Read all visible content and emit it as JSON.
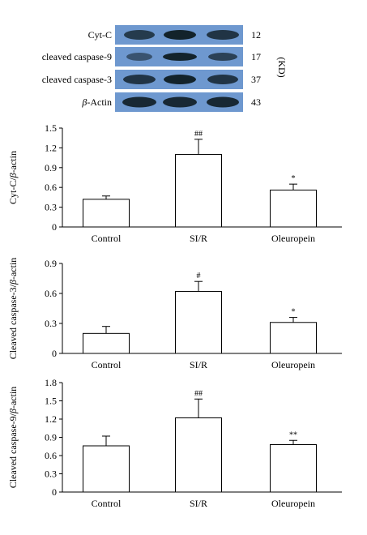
{
  "blot": {
    "lanes": 3,
    "strip_color": "#6e98cf",
    "rows": [
      {
        "label": "Cyt-C",
        "size": "12"
      },
      {
        "label": "cleaved caspase-9",
        "size": "17"
      },
      {
        "label": "cleaved caspase-3",
        "size": "37"
      },
      {
        "label_prefix": "β",
        "label": "-Actin",
        "size": "43"
      }
    ],
    "unit": "(KD)"
  },
  "chart_data": [
    {
      "type": "bar",
      "categories": [
        "Control",
        "SI/R",
        "Oleuropein"
      ],
      "values": [
        0.42,
        1.1,
        0.56
      ],
      "errors": [
        0.05,
        0.23,
        0.09
      ],
      "significance": [
        "",
        "##",
        "*"
      ],
      "ylabel_prefix": "Cyt-C/",
      "ylabel_italic": "β",
      "ylabel_suffix": "-actin",
      "ylim": [
        0,
        1.5
      ],
      "yticks": [
        "0",
        "0.3",
        "0.6",
        "0.9",
        "1.2",
        "1.5"
      ]
    },
    {
      "type": "bar",
      "categories": [
        "Control",
        "SI/R",
        "Oleuropein"
      ],
      "values": [
        0.2,
        0.62,
        0.31
      ],
      "errors": [
        0.07,
        0.1,
        0.05
      ],
      "significance": [
        "",
        "#",
        "*"
      ],
      "ylabel_prefix": "Cleaved caspase-3/",
      "ylabel_italic": "β",
      "ylabel_suffix": "-actin",
      "ylim": [
        0,
        0.9
      ],
      "yticks": [
        "0",
        "0.3",
        "0.6",
        "0.9"
      ]
    },
    {
      "type": "bar",
      "categories": [
        "Control",
        "SI/R",
        "Oleuropein"
      ],
      "values": [
        0.76,
        1.22,
        0.78
      ],
      "errors": [
        0.16,
        0.31,
        0.07
      ],
      "significance": [
        "",
        "##",
        "**"
      ],
      "ylabel_prefix": "Cleaved caspase-9/",
      "ylabel_italic": "β",
      "ylabel_suffix": "-actin",
      "ylim": [
        0,
        1.8
      ],
      "yticks": [
        "0",
        "0.3",
        "0.6",
        "0.9",
        "1.2",
        "1.5",
        "1.8"
      ]
    }
  ]
}
